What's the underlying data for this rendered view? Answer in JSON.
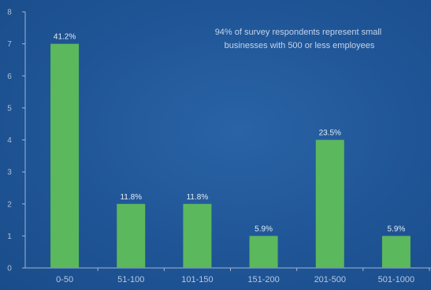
{
  "chart_data": {
    "type": "bar",
    "categories": [
      "0-50",
      "51-100",
      "101-150",
      "151-200",
      "201-500",
      "501-1000"
    ],
    "values": [
      7,
      2,
      2,
      1,
      4,
      1
    ],
    "data_labels": [
      "41.2%",
      "11.8%",
      "11.8%",
      "5.9%",
      "23.5%",
      "5.9%"
    ],
    "ylim": [
      0,
      8
    ],
    "yticks": [
      "0",
      "1",
      "2",
      "3",
      "4",
      "5",
      "6",
      "7",
      "8"
    ],
    "annotation": [
      "94% of survey respondents represent small",
      "businesses with 500 or less employees"
    ],
    "grid": false,
    "colors": {
      "bar": "#5cb85c",
      "background": "#1f5596",
      "axis": "#9fb4d6"
    }
  }
}
